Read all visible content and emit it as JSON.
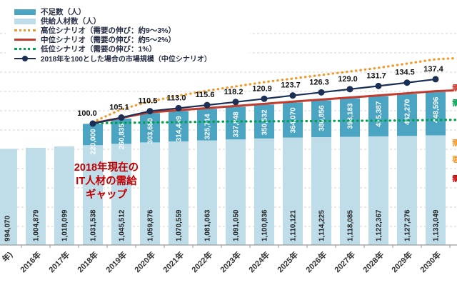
{
  "legend": {
    "items": [
      {
        "label": "不足数（人）",
        "swatch": "bar",
        "color": "#4ba4c2"
      },
      {
        "label": "供給人材数（人）",
        "swatch": "bar",
        "color": "#bfdce9"
      },
      {
        "label": "高位シナリオ（需要の伸び：約9～3%）",
        "swatch": "dotted",
        "color": "#ee9a2e"
      },
      {
        "label": "中位シナリオ（需要の伸び：約5～2%）",
        "swatch": "solid",
        "color": "#c13b2e"
      },
      {
        "label": "低位シナリオ（需要の伸び：1%）",
        "swatch": "dotted",
        "color": "#00a14e"
      },
      {
        "label": "2018年を100とした場合の市場規模（中位シナリオ）",
        "swatch": "line-marker",
        "color": "#1c2f54"
      }
    ]
  },
  "annotation": {
    "lines": [
      "2018年現在の",
      "IT人材の需給",
      "ギャップ"
    ],
    "color": "#c00000"
  },
  "chart_data": {
    "type": "bar",
    "stacking": "stacked",
    "grid": true,
    "legend_position": "top-left",
    "categories": [
      "年)",
      "2016年",
      "2017年",
      "2018年",
      "2019年",
      "2020年",
      "2021年",
      "2022年",
      "2023年",
      "2024年",
      "2025年",
      "2026年",
      "2027年",
      "2028年",
      "2029年",
      "2030年"
    ],
    "series": [
      {
        "name": "供給人材数（人）",
        "color": "#bfdce9",
        "values": [
          994070,
          1004879,
          1018099,
          1031538,
          1045512,
          1059876,
          1070559,
          1081063,
          1091050,
          1100836,
          1110121,
          1114225,
          1118085,
          1122367,
          1127276,
          1133049
        ]
      },
      {
        "name": "不足数（人）",
        "color": "#4ba4c2",
        "values": [
          null,
          null,
          null,
          220000,
          260835,
          303680,
          314439,
          325714,
          337848,
          350532,
          364070,
          380856,
          398183,
          415387,
          432270,
          448596
        ]
      }
    ],
    "index_line": {
      "name": "2018年を100とした場合の市場規模（中位シナリオ）",
      "color": "#1c2f54",
      "start_category_index": 3,
      "values": [
        100.0,
        105.1,
        110.5,
        113.0,
        115.6,
        118.2,
        120.9,
        123.7,
        126.3,
        129.0,
        131.7,
        134.5,
        137.4
      ]
    },
    "scenario_lines": [
      {
        "name": "高位シナリオ（需要の伸び：約9～3%）",
        "style": "dotted",
        "color": "#ee9a2e"
      },
      {
        "name": "中位シナリオ（需要の伸び：約5～2%）",
        "style": "solid",
        "color": "#c13b2e"
      },
      {
        "name": "低位シナリオ（需要の伸び：1%）",
        "style": "dotted",
        "color": "#00a14e"
      }
    ]
  },
  "right_edge_clipped_labels": [
    {
      "text": "需",
      "color": "#c13b2e",
      "y": 115
    },
    {
      "text": "需",
      "color": "#00a14e",
      "y": 136
    },
    {
      "text": "需",
      "color": "#ee9a2e",
      "y": 192
    },
    {
      "text": "要",
      "color": "#ee9a2e",
      "y": 215
    },
    {
      "text": "需",
      "color": "#c00000",
      "y": 242
    }
  ],
  "colors": {
    "shortage_bar": "#4ba4c2",
    "supply_bar": "#bfdce9",
    "high_scenario": "#ee9a2e",
    "mid_scenario": "#c13b2e",
    "low_scenario": "#00a14e",
    "index_line": "#1c2f54",
    "annotation": "#c00000",
    "gridline": "#d6d6d6",
    "axis": "#9a9a9a"
  }
}
